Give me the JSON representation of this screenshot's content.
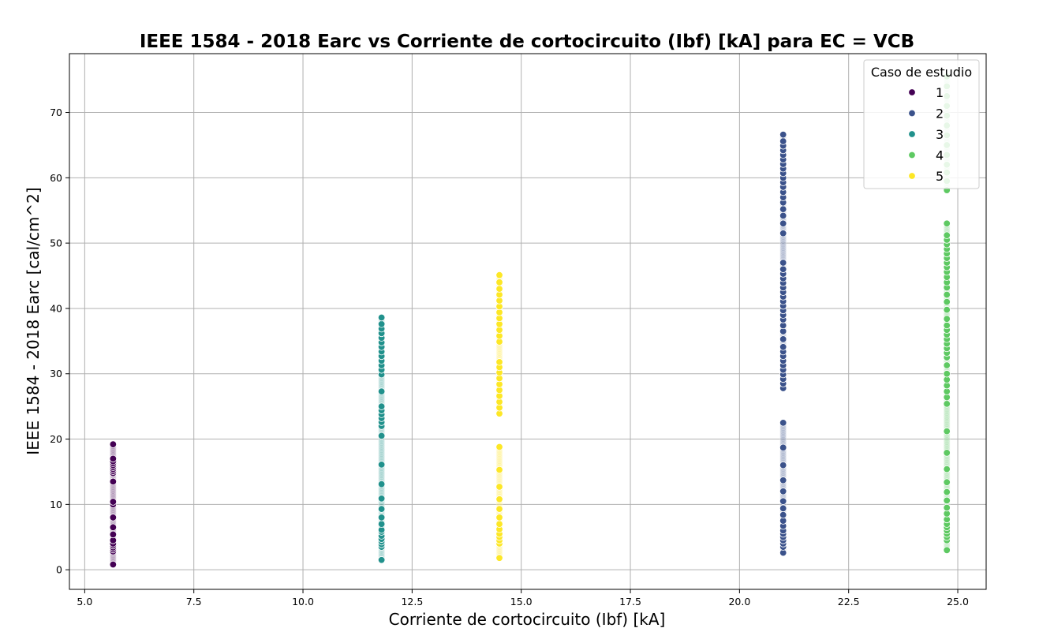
{
  "chart_data": {
    "type": "scatter",
    "title": "IEEE 1584 - 2018 Earc vs Corriente de cortocircuito (Ibf) [kA] para EC = VCB",
    "xlabel": "Corriente de cortocircuito (Ibf) [kA]",
    "ylabel": "IEEE 1584 - 2018 Earc [cal/cm^2]",
    "xlim": [
      4.65,
      25.65
    ],
    "ylim": [
      -3,
      79
    ],
    "xticks": [
      5.0,
      7.5,
      10.0,
      12.5,
      15.0,
      17.5,
      20.0,
      22.5,
      25.0
    ],
    "xtick_labels": [
      "5.0",
      "7.5",
      "10.0",
      "12.5",
      "15.0",
      "17.5",
      "20.0",
      "22.5",
      "25.0"
    ],
    "yticks": [
      0,
      10,
      20,
      30,
      40,
      50,
      60,
      70
    ],
    "ytick_labels": [
      "0",
      "10",
      "20",
      "30",
      "40",
      "50",
      "60",
      "70"
    ],
    "grid": true,
    "legend": {
      "title": "Caso de estudio",
      "position": "top-right"
    },
    "series": [
      {
        "name": "1",
        "color": "#440154",
        "x": 5.65,
        "y": [
          0.8,
          2.8,
          3.1,
          3.4,
          3.7,
          4.0,
          4.5,
          5.4,
          6.5,
          8.0,
          10.0,
          10.4,
          13.5,
          14.8,
          15.1,
          15.4,
          15.7,
          16.0,
          16.3,
          16.6,
          17.0,
          19.2
        ]
      },
      {
        "name": "2",
        "color": "#3b528b",
        "x": 21.0,
        "y": [
          2.6,
          3.5,
          4.0,
          4.5,
          5.0,
          5.5,
          6.0,
          6.7,
          7.5,
          8.4,
          9.4,
          10.5,
          12.0,
          13.7,
          16.0,
          18.7,
          22.5,
          27.8,
          28.5,
          29.2,
          29.9,
          30.6,
          31.3,
          32.0,
          32.7,
          33.4,
          34.1,
          35.3,
          36.5,
          37.4,
          38.3,
          39.0,
          39.7,
          40.4,
          41.1,
          41.8,
          42.5,
          43.2,
          43.9,
          44.6,
          45.3,
          46.0,
          47.0,
          51.5,
          53.0,
          54.2,
          55.2,
          56.2,
          57.0,
          57.8,
          58.6,
          59.3,
          60.0,
          60.7,
          61.4,
          62.1,
          62.8,
          63.5,
          64.2,
          64.9,
          65.6,
          66.6
        ]
      },
      {
        "name": "3",
        "color": "#21918c",
        "x": 11.8,
        "y": [
          1.5,
          3.5,
          3.9,
          4.3,
          4.7,
          5.2,
          5.8,
          6.1,
          7.0,
          8.0,
          9.3,
          10.9,
          13.1,
          16.1,
          20.5,
          22.0,
          22.6,
          23.2,
          23.8,
          24.4,
          25.0,
          27.3,
          29.9,
          30.6,
          31.3,
          32.0,
          32.7,
          33.4,
          34.1,
          34.8,
          35.5,
          36.2,
          36.9,
          37.6,
          38.6
        ]
      },
      {
        "name": "4",
        "color": "#5ec962",
        "x": 24.75,
        "y": [
          3.0,
          4.5,
          5.0,
          5.5,
          6.0,
          6.5,
          7.0,
          7.7,
          8.6,
          9.5,
          10.6,
          11.9,
          13.4,
          15.4,
          17.9,
          21.2,
          25.4,
          26.4,
          27.3,
          28.2,
          29.1,
          30.0,
          31.3,
          32.5,
          33.2,
          33.9,
          34.6,
          35.3,
          36.0,
          36.7,
          37.4,
          38.4,
          39.8,
          41.0,
          42.1,
          43.2,
          44.0,
          44.8,
          45.6,
          46.3,
          47.0,
          47.7,
          48.4,
          49.1,
          49.8,
          50.5,
          51.2,
          53.0,
          58.1,
          59.5,
          60.8,
          62.0,
          63.5,
          65.0,
          66.5,
          68.0,
          69.5,
          71.0,
          72.5,
          74.0,
          75.5
        ]
      },
      {
        "name": "5",
        "color": "#fde725",
        "x": 14.5,
        "y": [
          1.8,
          4.0,
          4.5,
          5.0,
          5.5,
          6.2,
          7.0,
          8.0,
          9.3,
          10.8,
          12.7,
          15.3,
          18.8,
          23.9,
          24.8,
          25.7,
          26.6,
          27.5,
          28.4,
          29.3,
          30.2,
          31.0,
          31.8,
          34.9,
          35.8,
          36.7,
          37.6,
          38.5,
          39.4,
          40.3,
          41.2,
          42.1,
          43.0,
          44.0,
          45.1
        ]
      }
    ]
  }
}
